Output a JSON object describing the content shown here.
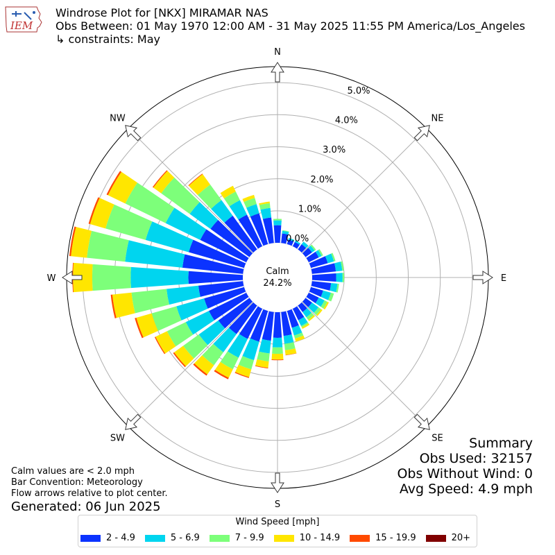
{
  "header": {
    "title": "Windrose Plot for [NKX] MIRAMAR NAS",
    "obs_between": "Obs Between: 01 May 1970 12:00 AM - 31 May 2025 11:55 PM America/Los_Angeles",
    "constraints": "↳ constraints: May",
    "logo_text": "IEM"
  },
  "summary": {
    "title": "Summary",
    "obs_used": "Obs Used: 32157",
    "obs_without_wind": "Obs Without Wind: 0",
    "avg_speed": "Avg Speed: 4.9 mph"
  },
  "notes": {
    "calm_note": "Calm values are < 2.0 mph",
    "bar_convention": "Bar Convention: Meteorology",
    "flow_arrows": "Flow arrows relative to plot center.",
    "generated": "Generated: 06 Jun 2025"
  },
  "legend": {
    "title": "Wind Speed [mph]",
    "items": [
      {
        "label": "2 - 4.9",
        "color": "#0b33ff"
      },
      {
        "label": "5 - 6.9",
        "color": "#00d5ef"
      },
      {
        "label": "7 - 9.9",
        "color": "#7dff7a"
      },
      {
        "label": "10 - 14.9",
        "color": "#ffe600"
      },
      {
        "label": "15 - 19.9",
        "color": "#ff4a00"
      },
      {
        "label": "20+",
        "color": "#800000"
      }
    ]
  },
  "chart_data": {
    "type": "windrose",
    "calm_label": "Calm",
    "calm_value": "24.2%",
    "radial_max": 5.5,
    "radial_ticks": [
      "0.0%",
      "1.0%",
      "2.0%",
      "3.0%",
      "4.0%",
      "5.0%"
    ],
    "compass_labels": [
      "N",
      "NE",
      "E",
      "SE",
      "S",
      "SW",
      "W",
      "NW"
    ],
    "series_names": [
      "2 - 4.9",
      "5 - 6.9",
      "7 - 9.9",
      "10 - 14.9",
      "15 - 19.9",
      "20+"
    ],
    "directions": [
      0,
      10,
      20,
      30,
      40,
      50,
      60,
      70,
      80,
      90,
      100,
      110,
      120,
      130,
      140,
      150,
      160,
      170,
      180,
      190,
      200,
      210,
      220,
      230,
      240,
      250,
      260,
      270,
      280,
      290,
      300,
      310,
      320,
      330,
      340,
      350
    ],
    "cumulative": [
      [
        0.55,
        0.7,
        0.75,
        0.75,
        0.75,
        0.75
      ],
      [
        0.3,
        0.38,
        0.4,
        0.4,
        0.4,
        0.4
      ],
      [
        0.15,
        0.2,
        0.2,
        0.2,
        0.2,
        0.2
      ],
      [
        0.15,
        0.2,
        0.2,
        0.2,
        0.2,
        0.2
      ],
      [
        0.2,
        0.3,
        0.3,
        0.3,
        0.3,
        0.3
      ],
      [
        0.25,
        0.35,
        0.4,
        0.4,
        0.4,
        0.4
      ],
      [
        0.35,
        0.45,
        0.5,
        0.5,
        0.5,
        0.5
      ],
      [
        0.55,
        0.75,
        0.8,
        0.8,
        0.8,
        0.8
      ],
      [
        0.75,
        0.95,
        1.0,
        1.0,
        1.0,
        1.0
      ],
      [
        0.75,
        0.95,
        1.0,
        1.0,
        1.0,
        1.0
      ],
      [
        0.6,
        0.8,
        0.85,
        0.85,
        0.85,
        0.85
      ],
      [
        0.4,
        0.65,
        0.75,
        0.75,
        0.75,
        0.75
      ],
      [
        0.35,
        0.55,
        0.65,
        0.7,
        0.7,
        0.7
      ],
      [
        0.25,
        0.5,
        0.6,
        0.65,
        0.65,
        0.65
      ],
      [
        0.25,
        0.45,
        0.55,
        0.6,
        0.6,
        0.6
      ],
      [
        0.4,
        0.6,
        0.65,
        0.7,
        0.7,
        0.7
      ],
      [
        0.55,
        0.8,
        0.9,
        1.0,
        1.0,
        1.0
      ],
      [
        0.75,
        1.0,
        1.2,
        1.35,
        1.36,
        1.36
      ],
      [
        0.8,
        1.1,
        1.3,
        1.48,
        1.5,
        1.5
      ],
      [
        0.9,
        1.3,
        1.55,
        1.75,
        1.77,
        1.77
      ],
      [
        1.0,
        1.6,
        1.9,
        2.15,
        2.18,
        2.18
      ],
      [
        1.05,
        1.7,
        2.1,
        2.4,
        2.45,
        2.45
      ],
      [
        1.1,
        1.8,
        2.3,
        2.65,
        2.7,
        2.7
      ],
      [
        1.2,
        1.95,
        2.55,
        2.9,
        2.94,
        2.94
      ],
      [
        1.3,
        2.1,
        2.75,
        3.15,
        3.18,
        3.18
      ],
      [
        1.3,
        2.2,
        3.0,
        3.5,
        3.55,
        3.55
      ],
      [
        1.4,
        2.4,
        3.5,
        4.1,
        4.15,
        4.15
      ],
      [
        1.7,
        3.5,
        4.7,
        5.3,
        5.32,
        5.32
      ],
      [
        1.9,
        3.7,
        4.9,
        5.4,
        5.45,
        5.45
      ],
      [
        1.8,
        3.2,
        4.5,
        5.0,
        5.05,
        5.05
      ],
      [
        1.6,
        2.8,
        4.2,
        4.8,
        4.85,
        4.85
      ],
      [
        1.5,
        2.3,
        3.4,
        3.7,
        3.73,
        3.73
      ],
      [
        1.3,
        1.9,
        2.5,
        2.9,
        2.92,
        2.92
      ],
      [
        1.1,
        1.6,
        1.9,
        2.1,
        2.1,
        2.1
      ],
      [
        1.0,
        1.3,
        1.5,
        1.6,
        1.6,
        1.6
      ],
      [
        0.8,
        1.1,
        1.25,
        1.3,
        1.3,
        1.3
      ]
    ]
  }
}
